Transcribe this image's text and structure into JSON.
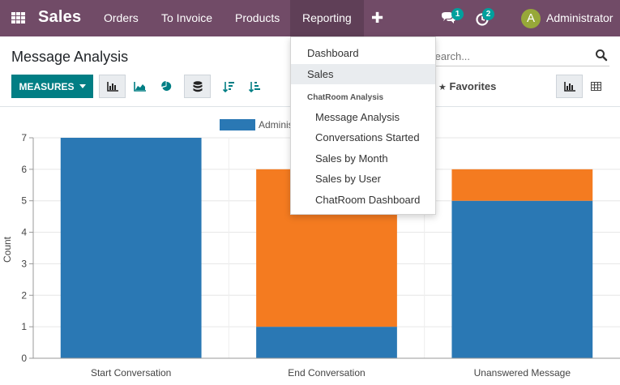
{
  "navbar": {
    "brand": "Sales",
    "menu": [
      "Orders",
      "To Invoice",
      "Products",
      "Reporting"
    ],
    "plus_icon": "plus-icon",
    "chat_badge": "1",
    "activity_badge": "2",
    "avatar_letter": "A",
    "user_name": "Administrator",
    "bg_color": "#714B67"
  },
  "control_panel": {
    "title": "Message Analysis",
    "search_placeholder": "Search...",
    "measures_label": "MEASURES",
    "favorites_label": "Favorites"
  },
  "reporting_menu": {
    "items": [
      "Dashboard",
      "Sales"
    ],
    "section_header": "ChatRoom Analysis",
    "sub_items": [
      "Message Analysis",
      "Conversations Started",
      "Sales by Month",
      "Sales by User",
      "ChatRoom Dashboard"
    ]
  },
  "chart_data": {
    "type": "bar",
    "stacked": true,
    "categories": [
      "Start Conversation",
      "End Conversation",
      "Unanswered Message"
    ],
    "series": [
      {
        "name": "Administrator",
        "color": "#2A78B4",
        "values": [
          7,
          1,
          5
        ]
      },
      {
        "name": "",
        "color": "#F47B20",
        "values": [
          0,
          5,
          1
        ]
      }
    ],
    "legend_visible_text": "Adminis",
    "ylabel": "Count",
    "xlabel": "",
    "ylim": [
      0,
      7
    ],
    "yticks": [
      "0",
      "1",
      "2",
      "3",
      "4",
      "5",
      "6",
      "7"
    ],
    "grid": true,
    "legend_position": "top"
  }
}
